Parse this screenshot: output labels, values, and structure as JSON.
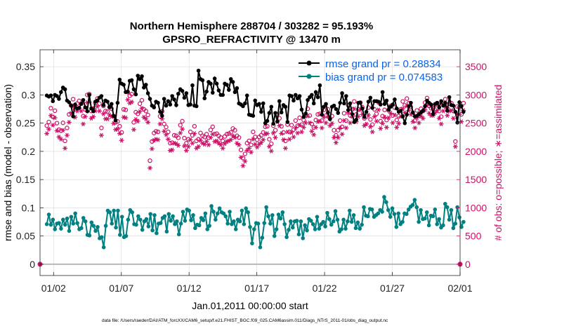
{
  "chart_data": {
    "type": "line",
    "title": "Northern Hemisphere 288704 / 303282 = 95.193%",
    "subtitle": "GPSRO_REFRACTIVITY @ 13470 m",
    "xlabel": "Jan.01,2011 00:00:00 start",
    "ylabel_left": "rmse and bias (model - observation)",
    "ylabel_right": "# of obs: o=possible; ∗=assimilated",
    "footnote": "data file: /Users/raeder/DAI/ATM_forcXX/CAM6_setup/f.e21.FHIST_BGC.f09_025.CAM6assim.011/Diags_NTrS_2011-01/obs_diag_output.nc",
    "x_range_days": [
      0.5,
      31.5
    ],
    "ylim_left": [
      -0.02,
      0.38
    ],
    "ylim_right": [
      -200,
      3800
    ],
    "x_tick_labels": [
      "01/02",
      "01/07",
      "01/12",
      "01/17",
      "01/22",
      "01/27",
      "02/01"
    ],
    "x_tick_days": [
      1.5,
      6.5,
      11.5,
      16.5,
      21.5,
      26.5,
      31.5
    ],
    "y_ticks_left": [
      "0",
      "0.05",
      "0.1",
      "0.15",
      "0.2",
      "0.25",
      "0.3",
      "0.35"
    ],
    "y_tick_values_left": [
      0,
      0.05,
      0.1,
      0.15,
      0.2,
      0.25,
      0.3,
      0.35
    ],
    "y_ticks_right": [
      "0",
      "500",
      "1000",
      "1500",
      "2000",
      "2500",
      "3000",
      "3500"
    ],
    "y_tick_values_right": [
      0,
      500,
      1000,
      1500,
      2000,
      2500,
      3000,
      3500
    ],
    "grid": true,
    "legend_position": "top-right",
    "series": [
      {
        "name": "rmse grand pr = 0.28834",
        "color": "#000000",
        "marker": "filled-circle",
        "values": [
          0.299,
          0.297,
          0.299,
          0.289,
          0.3,
          0.298,
          0.293,
          0.305,
          0.313,
          0.31,
          0.29,
          0.287,
          0.281,
          0.262,
          0.283,
          0.276,
          0.277,
          0.284,
          0.291,
          0.278,
          0.271,
          0.3,
          0.276,
          0.271,
          0.288,
          0.29,
          0.295,
          0.298,
          0.282,
          0.29,
          0.288,
          0.278,
          0.284,
          0.263,
          0.255,
          0.286,
          0.327,
          0.32,
          0.318,
          0.305,
          0.306,
          0.325,
          0.326,
          0.31,
          0.301,
          0.334,
          0.328,
          0.333,
          0.313,
          0.318,
          0.303,
          0.293,
          0.281,
          0.278,
          0.288,
          0.286,
          0.27,
          0.263,
          0.293,
          0.281,
          0.289,
          0.283,
          0.298,
          0.292,
          0.282,
          0.302,
          0.31,
          0.307,
          0.295,
          0.303,
          0.282,
          0.283,
          0.317,
          0.281,
          0.28,
          0.343,
          0.328,
          0.326,
          0.294,
          0.306,
          0.323,
          0.32,
          0.304,
          0.329,
          0.32,
          0.308,
          0.3,
          0.3,
          0.32,
          0.318,
          0.309,
          0.328,
          0.323,
          0.305,
          0.312,
          0.285,
          0.283,
          0.28,
          0.285,
          0.299,
          0.265,
          0.264,
          0.263,
          0.29,
          0.282,
          0.284,
          0.27,
          0.285,
          0.25,
          0.254,
          0.268,
          0.279,
          0.249,
          0.268,
          0.253,
          0.289,
          0.269,
          0.282,
          0.279,
          0.252,
          0.299,
          0.298,
          0.29,
          0.3,
          0.294,
          0.298,
          0.274,
          0.261,
          0.267,
          0.291,
          0.296,
          0.3,
          0.285,
          0.305,
          0.296,
          0.317,
          0.265,
          0.279,
          0.284,
          0.269,
          0.257,
          0.279,
          0.281,
          0.275,
          0.268,
          0.286,
          0.303,
          0.285,
          0.298,
          0.273,
          0.285,
          0.266,
          0.252,
          0.256,
          0.286,
          0.286,
          0.276,
          0.261,
          0.27,
          0.288,
          0.295,
          0.277,
          0.289,
          0.289,
          0.288,
          0.283,
          0.305,
          0.284,
          0.29,
          0.274,
          0.279,
          0.283,
          0.292,
          0.276,
          0.27,
          0.272,
          0.262,
          0.25,
          0.265,
          0.28,
          0.286,
          0.269,
          0.262,
          0.263,
          0.266,
          0.269,
          0.272,
          0.28,
          0.29,
          0.286,
          0.283,
          0.266,
          0.284,
          0.286,
          0.278,
          0.289,
          0.281,
          0.286,
          0.272,
          0.296,
          0.282,
          0.281,
          0.27,
          0.251,
          0.287,
          0.28,
          0.27
        ]
      },
      {
        "name": "bias grand pr = 0.074583",
        "color": "#008080",
        "marker": "filled-circle",
        "values": [
          0.071,
          0.088,
          0.07,
          0.079,
          0.062,
          0.072,
          0.073,
          0.063,
          0.079,
          0.07,
          0.081,
          0.059,
          0.084,
          0.072,
          0.09,
          0.073,
          0.062,
          0.064,
          0.082,
          0.076,
          0.052,
          0.051,
          0.074,
          0.068,
          0.059,
          0.066,
          0.046,
          0.048,
          0.03,
          0.068,
          0.095,
          0.092,
          0.072,
          0.095,
          0.065,
          0.095,
          0.052,
          0.084,
          0.048,
          0.05,
          0.079,
          0.096,
          0.092,
          0.071,
          0.07,
          0.085,
          0.079,
          0.061,
          0.076,
          0.08,
          0.067,
          0.089,
          0.06,
          0.087,
          0.055,
          0.072,
          0.073,
          0.082,
          0.085,
          0.058,
          0.089,
          0.077,
          0.085,
          0.071,
          0.076,
          0.053,
          0.072,
          0.093,
          0.077,
          0.097,
          0.095,
          0.078,
          0.087,
          0.064,
          0.07,
          0.069,
          0.082,
          0.078,
          0.09,
          0.062,
          0.068,
          0.103,
          0.093,
          0.079,
          0.09,
          0.099,
          0.092,
          0.09,
          0.085,
          0.072,
          0.093,
          0.071,
          0.076,
          0.062,
          0.079,
          0.076,
          0.095,
          0.071,
          0.099,
          0.092,
          0.066,
          0.037,
          0.062,
          0.073,
          0.072,
          0.03,
          0.047,
          0.073,
          0.101,
          0.085,
          0.072,
          0.087,
          0.05,
          0.062,
          0.088,
          0.081,
          0.092,
          0.071,
          0.048,
          0.061,
          0.076,
          0.065,
          0.076,
          0.077,
          0.053,
          0.076,
          0.046,
          0.069,
          0.06,
          0.08,
          0.077,
          0.071,
          0.062,
          0.084,
          0.063,
          0.071,
          0.075,
          0.067,
          0.091,
          0.08,
          0.07,
          0.076,
          0.094,
          0.079,
          0.058,
          0.062,
          0.079,
          0.063,
          0.076,
          0.095,
          0.075,
          0.087,
          0.064,
          0.074,
          0.063,
          0.07,
          0.101,
          0.086,
          0.085,
          0.098,
          0.097,
          0.084,
          0.087,
          0.09,
          0.096,
          0.093,
          0.119,
          0.11,
          0.096,
          0.084,
          0.099,
          0.089,
          0.066,
          0.09,
          0.071,
          0.075,
          0.09,
          0.089,
          0.097,
          0.102,
          0.105,
          0.114,
          0.101,
          0.075,
          0.096,
          0.08,
          0.081,
          0.092,
          0.069,
          0.086,
          0.085,
          0.097,
          0.071,
          0.08,
          0.065,
          0.069,
          0.107,
          0.101,
          0.079,
          0.096,
          0.064,
          0.072,
          0.101,
          0.083,
          0.066,
          0.075
        ]
      },
      {
        "name": "possible observations",
        "color": "#cc1166",
        "marker": "open-circle",
        "values": [
          2455,
          2520,
          2765,
          2610,
          2720,
          2500,
          2385,
          2365,
          2505,
          2185,
          2415,
          2655,
          2815,
          2925,
          2745,
          2845,
          2895,
          2845,
          2625,
          2745,
          3000,
          3015,
          2715,
          2755,
          2855,
          2935,
          2845,
          2415,
          2805,
          2715,
          2705,
          2785,
          2755,
          2625,
          2515,
          2530,
          2445,
          2335,
          2745,
          2735,
          3050,
          2985,
          3015,
          2515,
          2695,
          2665,
          2845,
          2905,
          2745,
          2715,
          2645,
          1835,
          2175,
          2325,
          2355,
          2345,
          2620,
          2710,
          2485,
          2430,
          2345,
          2145,
          2155,
          2285,
          2275,
          2240,
          2465,
          2535,
          2235,
          2145,
          2215,
          2345,
          2285,
          2445,
          2185,
          2215,
          2325,
          2275,
          2255,
          2305,
          2240,
          2380,
          2435,
          2305,
          2315,
          2275,
          2245,
          2185,
          2265,
          2305,
          2315,
          2335,
          2405,
          2375,
          2275,
          2245,
          2025,
          1880,
          1955,
          2145,
          2185,
          2115,
          2345,
          2255,
          2205,
          2255,
          2285,
          2335,
          2435,
          2445,
          2215,
          2135,
          2455,
          2375,
          2655,
          2585,
          2445,
          2335,
          2185,
          2475,
          2345,
          2465,
          2385,
          2545,
          2455,
          2595,
          2475,
          2555,
          2635,
          2755,
          2635,
          2485,
          2425,
          2555,
          2655,
          2665,
          2545,
          2735,
          2635,
          2745,
          2585,
          2625,
          2375,
          2285,
          2375,
          2545,
          2435,
          2675,
          2545,
          2815,
          2635,
          2745,
          2885,
          2655,
          2745,
          2865,
          2785,
          2585,
          2615,
          2775,
          2565,
          2475,
          2745,
          2665,
          2865,
          2535,
          2625,
          2735,
          2555,
          2725,
          2805,
          2635,
          2775,
          2555,
          2625,
          2745,
          2885,
          2815,
          2935,
          2855,
          2785,
          2655,
          2545,
          2725,
          2635,
          2755,
          2715,
          2865,
          2945,
          2805,
          2765,
          2765,
          2815,
          2855,
          2715,
          2615,
          2845,
          2925,
          2765,
          2845,
          2855,
          2715,
          2175,
          2795,
          2785,
          2655,
          2855
        ]
      },
      {
        "name": "assimilated observations",
        "color": "#cc1166",
        "marker": "asterisk",
        "values": [
          2315,
          2395,
          2635,
          2465,
          2595,
          2365,
          2255,
          2215,
          2375,
          2055,
          2285,
          2515,
          2675,
          2795,
          2605,
          2715,
          2765,
          2715,
          2485,
          2615,
          2865,
          2875,
          2585,
          2615,
          2715,
          2795,
          2715,
          2285,
          2665,
          2575,
          2575,
          2645,
          2615,
          2495,
          2385,
          2395,
          2315,
          2195,
          2605,
          2595,
          2915,
          2855,
          2875,
          2385,
          2565,
          2535,
          2705,
          2765,
          2605,
          2575,
          2515,
          1705,
          2045,
          2195,
          2215,
          2205,
          2485,
          2575,
          2355,
          2295,
          2215,
          2015,
          2025,
          2145,
          2135,
          2105,
          2325,
          2395,
          2095,
          2015,
          2085,
          2205,
          2145,
          2315,
          2055,
          2085,
          2195,
          2145,
          2125,
          2175,
          2115,
          2245,
          2305,
          2175,
          2185,
          2145,
          2115,
          2055,
          2135,
          2175,
          2185,
          2205,
          2275,
          2245,
          2145,
          2115,
          1895,
          1745,
          1825,
          2015,
          2055,
          1985,
          2215,
          2125,
          2075,
          2125,
          2155,
          2205,
          2305,
          2315,
          2085,
          2005,
          2325,
          2245,
          2525,
          2455,
          2315,
          2205,
          2055,
          2345,
          2215,
          2335,
          2255,
          2415,
          2325,
          2465,
          2345,
          2425,
          2505,
          2625,
          2505,
          2355,
          2295,
          2425,
          2525,
          2535,
          2415,
          2605,
          2505,
          2615,
          2455,
          2495,
          2245,
          2155,
          2245,
          2415,
          2305,
          2545,
          2415,
          2685,
          2505,
          2615,
          2755,
          2525,
          2615,
          2735,
          2655,
          2455,
          2485,
          2645,
          2435,
          2345,
          2615,
          2535,
          2735,
          2405,
          2495,
          2605,
          2425,
          2595,
          2675,
          2505,
          2645,
          2425,
          2495,
          2615,
          2755,
          2685,
          2805,
          2725,
          2655,
          2525,
          2415,
          2595,
          2505,
          2625,
          2585,
          2735,
          2815,
          2675,
          2635,
          2635,
          2685,
          2725,
          2585,
          2485,
          2715,
          2795,
          2635,
          2715,
          2725,
          2585,
          2085,
          2665,
          2655,
          2525,
          2725
        ]
      }
    ],
    "zero_line_color": "#b8b8b8"
  }
}
